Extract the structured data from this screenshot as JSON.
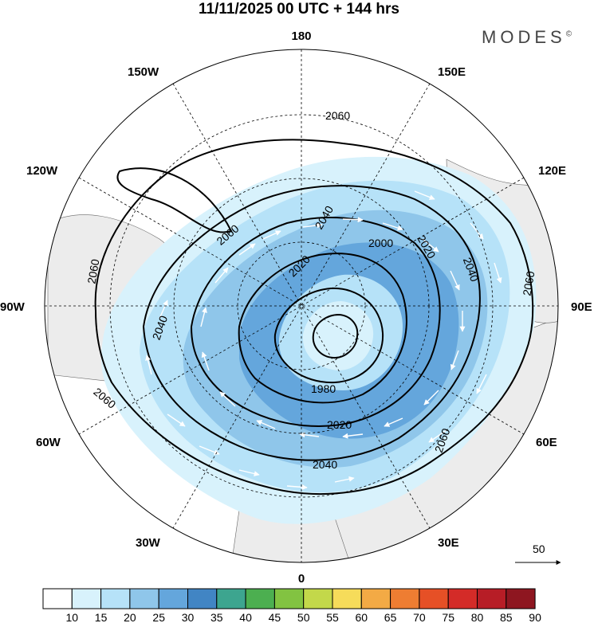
{
  "title": "11/11/2025  00 UTC  + 144 hrs",
  "brand": "MODES",
  "brand_mark": "©",
  "longitude_labels": {
    "top": "180",
    "bottom": "0",
    "left": "90W",
    "right": "90E",
    "upper_left_outer": "150W",
    "upper_left_inner": "120W",
    "upper_right_outer": "150E",
    "upper_right_inner": "120E",
    "lower_left_inner": "60W",
    "lower_left_outer": "30W",
    "lower_right_inner": "60E",
    "lower_right_outer": "30E"
  },
  "contour_labels": [
    "2060",
    "2060",
    "2060",
    "2060",
    "2060",
    "2060",
    "2040",
    "2040",
    "2040",
    "2040",
    "2020",
    "2020",
    "2020",
    "2000",
    "1980"
  ],
  "reference_vector": {
    "label": "50"
  },
  "colorbar": {
    "ticks": [
      "10",
      "15",
      "20",
      "25",
      "30",
      "35",
      "40",
      "45",
      "50",
      "55",
      "60",
      "65",
      "70",
      "75",
      "80",
      "85",
      "90"
    ],
    "colors": [
      "#ffffff",
      "#d8f2fc",
      "#b6e2f8",
      "#8fc6ea",
      "#64a6dc",
      "#4185c4",
      "#3da58f",
      "#4caf50",
      "#82c341",
      "#c3d84a",
      "#f6dc5a",
      "#f3aa45",
      "#ee7d32",
      "#e65026",
      "#d42b28",
      "#b71d26",
      "#8e1620"
    ]
  }
}
